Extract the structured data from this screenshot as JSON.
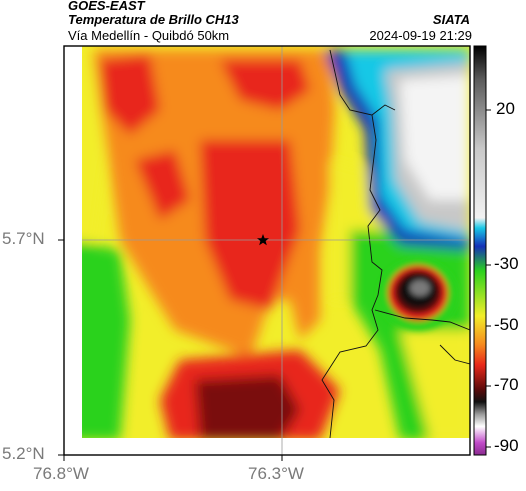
{
  "header": {
    "satellite": "GOES-EAST",
    "product": "Temperatura de Brillo CH13",
    "region": "Vía Medellín - Quibdó 50km",
    "organization": "SIATA",
    "timestamp": "2024-09-19 21:29"
  },
  "map": {
    "lon_ticks": [
      "76.8°W",
      "76.3°W"
    ],
    "lat_ticks": [
      "5.7°N",
      "5.2°N"
    ],
    "marker": "star-marker"
  },
  "colorbar": {
    "ticks": [
      "20",
      "-30",
      "-50",
      "-70",
      "-90"
    ],
    "colors": {
      "warm_white": "#f4f4f4",
      "gray": "#9a9a9a",
      "black": "#111111",
      "cyan": "#19c8e6",
      "blue": "#1530b8",
      "green": "#2bd21e",
      "yellow": "#f2ee2a",
      "orange": "#f68a1e",
      "red": "#e8281a",
      "dark_red": "#5a0a0a",
      "magenta": "#c14bc9"
    }
  }
}
